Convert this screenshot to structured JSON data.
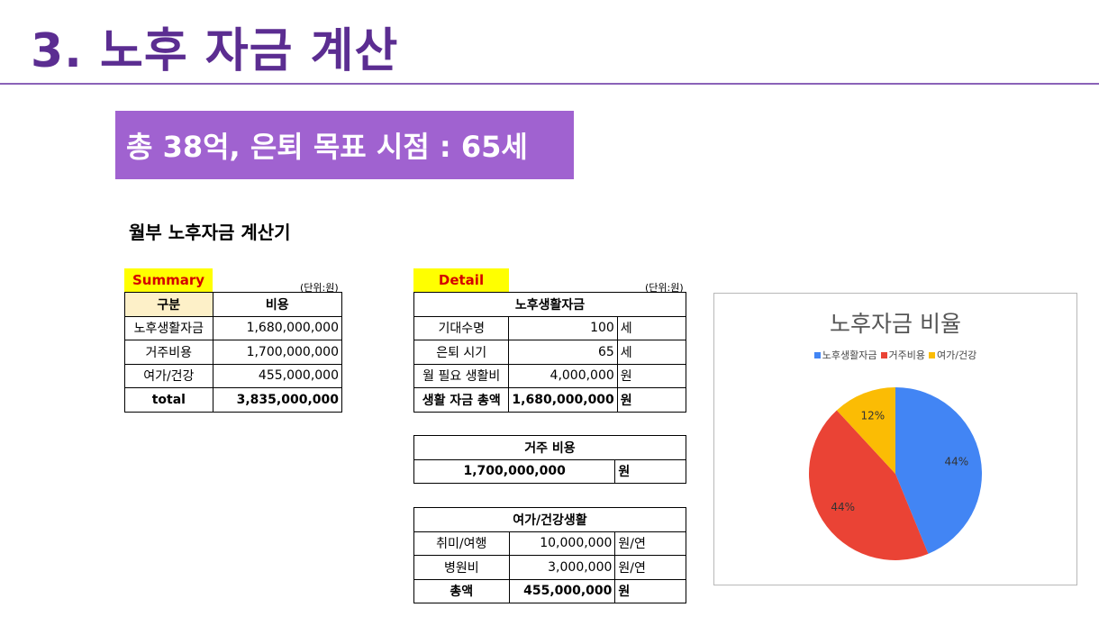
{
  "header": {
    "title": "3. 노후 자금 계산",
    "banner": "총 38억, 은퇴 목표 시점  : 65세",
    "calculator_title": "월부 노후자금 계산기"
  },
  "summary": {
    "tag": "Summary",
    "unit": "(단위:원)",
    "col_headers": [
      "구분",
      "비용"
    ],
    "rows": [
      {
        "label": "노후생활자금",
        "value": "1,680,000,000"
      },
      {
        "label": "거주비용",
        "value": "1,700,000,000"
      },
      {
        "label": "여가/건강",
        "value": "455,000,000"
      }
    ],
    "total_label": "total",
    "total_value": "3,835,000,000"
  },
  "detail": {
    "tag": "Detail",
    "unit": "(단위:원)",
    "living": {
      "header": "노후생활자금",
      "rows": [
        {
          "label": "기대수명",
          "value": "100",
          "unit": "세"
        },
        {
          "label": "은퇴 시기",
          "value": "65",
          "unit": "세"
        },
        {
          "label": "월 필요 생활비",
          "value": "4,000,000",
          "unit": "원"
        }
      ],
      "total": {
        "label": "생활 자금 총액",
        "value": "1,680,000,000",
        "unit": "원"
      }
    },
    "housing": {
      "header": "거주 비용",
      "value": "1,700,000,000",
      "unit": "원"
    },
    "leisure": {
      "header": "여가/건강생활",
      "rows": [
        {
          "label": "취미/여행",
          "value": "10,000,000",
          "unit": "원/연"
        },
        {
          "label": "병원비",
          "value": "3,000,000",
          "unit": "원/연"
        }
      ],
      "total": {
        "label": "총액",
        "value": "455,000,000",
        "unit": "원"
      }
    }
  },
  "chart_data": {
    "type": "pie",
    "title": "노후자금 비율",
    "legend_position": "top",
    "categories": [
      "노후생활자금",
      "거주비용",
      "여가/건강"
    ],
    "values": [
      1680000000,
      1700000000,
      455000000
    ],
    "labels": [
      "44%",
      "44%",
      "12%"
    ],
    "colors": [
      "#4285f4",
      "#ea4335",
      "#fbbc04"
    ]
  }
}
